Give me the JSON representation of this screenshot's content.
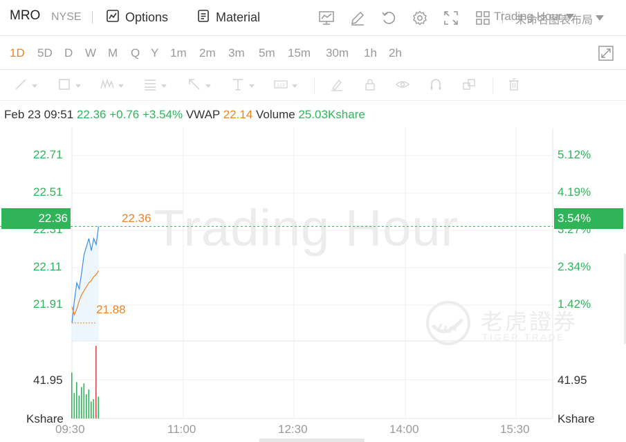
{
  "header": {
    "symbol": "MRO",
    "exchange": "NYSE",
    "options_label": "Options",
    "material_label": "Material",
    "layout_name": "未命名图表布局"
  },
  "periods": [
    "1D",
    "5D",
    "D",
    "W",
    "M",
    "Q",
    "Y",
    "1m",
    "2m",
    "3m",
    "5m",
    "15m",
    "30m",
    "1h",
    "2h"
  ],
  "active_period": "1D",
  "session_label": "Trading Hour",
  "info": {
    "datetime": "Feb 23 09:51",
    "price": "22.36",
    "change": "+0.76",
    "change_pct": "+3.54%",
    "vwap_label": "VWAP",
    "vwap": "22.14",
    "volume_label": "Volume",
    "volume": "25.03Kshare"
  },
  "watermark": {
    "text": "Trading Hour",
    "cn": "老虎證券",
    "en": "TIGER TRADE"
  },
  "axes": {
    "left_price": [
      "22.71",
      "22.51",
      "22.31",
      "22.11",
      "21.91"
    ],
    "right_pct": [
      "5.12%",
      "4.19%",
      "3.27%",
      "2.34%",
      "1.42%"
    ],
    "current_price_tag": "22.36",
    "current_pct_tag": "3.54%",
    "high_label": "22.36",
    "low_label": "21.88",
    "volume_left": "41.95",
    "volume_right": "41.95",
    "volume_unit_left": "Kshare",
    "volume_unit_right": "Kshare",
    "time": [
      "09:30",
      "11:00",
      "12:30",
      "14:00",
      "15:30"
    ]
  },
  "colors": {
    "up": "#2fb45a",
    "down": "#e0434a",
    "accent": "#f0821e",
    "price_line": "#3a8ee6",
    "vwap_line": "#f0821e"
  },
  "chart_data": {
    "type": "line",
    "title": "",
    "x": [
      "09:30",
      "09:32",
      "09:34",
      "09:36",
      "09:38",
      "09:40",
      "09:42",
      "09:44",
      "09:46",
      "09:48",
      "09:50",
      "09:51"
    ],
    "series": [
      {
        "name": "",
        "values": [
          21.88,
          21.99,
          22.08,
          22.05,
          22.13,
          22.22,
          22.26,
          22.3,
          22.24,
          22.3,
          22.27,
          22.36
        ]
      },
      {
        "name": "VWAP",
        "values": [
          21.96,
          21.92,
          21.95,
          21.99,
          22.02,
          22.04,
          22.06,
          22.08,
          22.09,
          22.11,
          22.12,
          22.14
        ]
      }
    ],
    "volume": [
      38,
      21,
      30,
      19,
      26,
      29,
      20,
      24,
      14,
      16,
      60,
      18
    ],
    "volume_colors": [
      "up",
      "up",
      "up",
      "up",
      "up",
      "up",
      "up",
      "up",
      "up",
      "up",
      "down",
      "up"
    ],
    "ylim": [
      21.79,
      22.85
    ],
    "pct_ylim": [
      0.98,
      5.8
    ],
    "x_range": [
      "09:30",
      "16:00"
    ],
    "grid": true
  }
}
